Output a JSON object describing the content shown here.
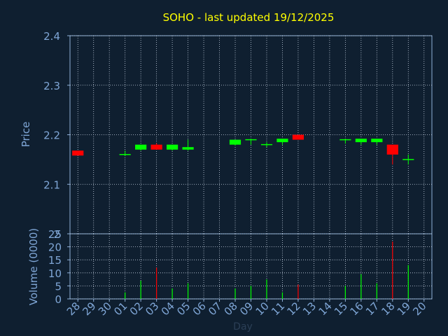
{
  "chart_data": [
    {
      "type": "candlestick",
      "title": "SOHO - last updated 19/12/2025",
      "ylabel": "Price",
      "ylim": [
        2.0,
        2.4
      ],
      "yticks": [
        "2.4",
        "2.3",
        "2.2",
        "2.1",
        "2"
      ],
      "grid": true,
      "colors": {
        "up": "#00ff00",
        "down": "#ff0000",
        "title": "#ffff00",
        "axis_text": "#7fa6d6",
        "frame": "#8fb0d8"
      },
      "candles": [
        {
          "day": "28",
          "open": 2.168,
          "high": 2.168,
          "low": 2.158,
          "close": 2.158
        },
        {
          "day": "01",
          "open": 2.158,
          "high": 2.168,
          "low": 2.157,
          "close": 2.16
        },
        {
          "day": "02",
          "open": 2.17,
          "high": 2.18,
          "low": 2.168,
          "close": 2.18
        },
        {
          "day": "03",
          "open": 2.18,
          "high": 2.183,
          "low": 2.17,
          "close": 2.17
        },
        {
          "day": "04",
          "open": 2.17,
          "high": 2.18,
          "low": 2.168,
          "close": 2.18
        },
        {
          "day": "05",
          "open": 2.17,
          "high": 2.19,
          "low": 2.168,
          "close": 2.175
        },
        {
          "day": "08",
          "open": 2.18,
          "high": 2.19,
          "low": 2.178,
          "close": 2.19
        },
        {
          "day": "09",
          "open": 2.188,
          "high": 2.192,
          "low": 2.18,
          "close": 2.19
        },
        {
          "day": "10",
          "open": 2.178,
          "high": 2.185,
          "low": 2.175,
          "close": 2.18
        },
        {
          "day": "11",
          "open": 2.185,
          "high": 2.192,
          "low": 2.18,
          "close": 2.192
        },
        {
          "day": "12",
          "open": 2.2,
          "high": 2.2,
          "low": 2.19,
          "close": 2.19
        },
        {
          "day": "15",
          "open": 2.188,
          "high": 2.192,
          "low": 2.182,
          "close": 2.19
        },
        {
          "day": "16",
          "open": 2.185,
          "high": 2.19,
          "low": 2.18,
          "close": 2.192
        },
        {
          "day": "17",
          "open": 2.185,
          "high": 2.192,
          "low": 2.18,
          "close": 2.192
        },
        {
          "day": "18",
          "open": 2.18,
          "high": 2.18,
          "low": 2.14,
          "close": 2.16
        },
        {
          "day": "19",
          "open": 2.148,
          "high": 2.16,
          "low": 2.14,
          "close": 2.15
        }
      ]
    },
    {
      "type": "bar",
      "ylabel": "Volume (0000)",
      "xlabel": "Day",
      "ylim": [
        0,
        25
      ],
      "yticks": [
        "25",
        "20",
        "15",
        "10",
        "5",
        "0"
      ],
      "categories": [
        "28",
        "29",
        "30",
        "01",
        "02",
        "03",
        "04",
        "05",
        "06",
        "07",
        "08",
        "09",
        "10",
        "11",
        "12",
        "13",
        "14",
        "15",
        "16",
        "17",
        "18",
        "19",
        "20"
      ],
      "values": [
        0,
        0,
        0,
        2.5,
        7,
        12,
        4,
        6,
        0,
        0,
        4,
        5,
        7.5,
        2.5,
        5.5,
        0,
        0,
        5,
        9.5,
        6,
        22,
        13,
        0
      ],
      "bar_colors": [
        "#00ff00",
        "#00ff00",
        "#00ff00",
        "#00ff00",
        "#00ff00",
        "#ff0000",
        "#00ff00",
        "#00ff00",
        "#00ff00",
        "#00ff00",
        "#00ff00",
        "#00ff00",
        "#00ff00",
        "#00ff00",
        "#ff0000",
        "#00ff00",
        "#00ff00",
        "#00ff00",
        "#00ff00",
        "#00ff00",
        "#ff0000",
        "#00ff00",
        "#00ff00"
      ]
    }
  ]
}
